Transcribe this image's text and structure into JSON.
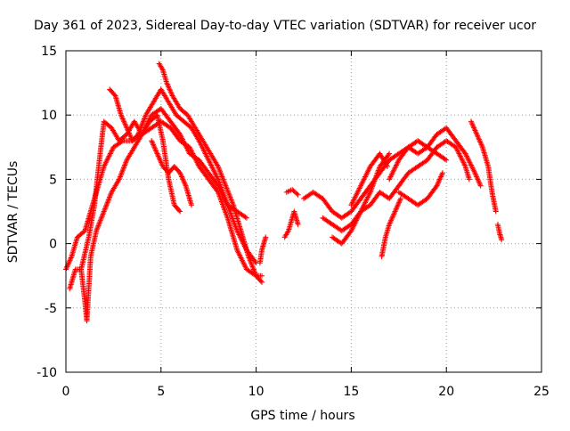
{
  "chart_data": {
    "type": "scatter",
    "title": "Day 361 of 2023, Sidereal Day-to-day VTEC variation (SDTVAR) for receiver ucor",
    "xlabel": "GPS time / hours",
    "ylabel": "SDTVAR / TECUs",
    "xlim": [
      0,
      25
    ],
    "ylim": [
      -10,
      15
    ],
    "xticks": [
      0,
      5,
      10,
      15,
      20,
      25
    ],
    "xtick_labels": [
      "0",
      "5",
      "10",
      "15",
      "20",
      "25"
    ],
    "yticks": [
      -10,
      -5,
      0,
      5,
      10,
      15
    ],
    "ytick_labels": [
      "-10",
      "-5",
      "0",
      "5",
      "10",
      "15"
    ],
    "grid": true,
    "marker": "+",
    "series": [
      {
        "name": "track-1",
        "color": "#ff0000",
        "x": [
          0.0,
          0.3,
          0.6,
          1.0,
          1.4,
          1.8,
          2.0,
          2.5,
          3.0,
          3.5,
          4.0,
          4.5,
          5.0,
          5.5,
          6.0,
          6.5,
          7.0,
          7.5,
          8.0,
          8.5,
          9.0,
          9.5,
          10.0,
          10.3
        ],
        "y": [
          -2.0,
          -1.0,
          0.5,
          1.0,
          3.0,
          5.0,
          6.0,
          7.5,
          8.0,
          8.0,
          8.5,
          9.0,
          9.5,
          9.0,
          8.0,
          7.5,
          6.0,
          5.0,
          4.0,
          2.0,
          -0.5,
          -2.0,
          -2.5,
          -2.5
        ]
      },
      {
        "name": "track-2",
        "color": "#ff0000",
        "x": [
          0.8,
          1.2,
          1.5,
          1.8,
          2.0,
          2.4,
          2.8,
          3.2,
          3.6,
          4.0,
          4.5,
          5.0,
          5.5,
          6.0,
          6.5,
          7.0,
          7.5,
          8.0,
          8.5,
          9.0,
          9.5
        ],
        "y": [
          -2.0,
          0.5,
          3.0,
          7.0,
          9.5,
          9.0,
          8.0,
          8.5,
          9.5,
          8.5,
          10.0,
          10.5,
          9.5,
          8.5,
          7.0,
          6.5,
          5.5,
          4.5,
          3.0,
          2.5,
          2.0
        ]
      },
      {
        "name": "track-3",
        "color": "#ff0000",
        "x": [
          2.3,
          2.6,
          2.9,
          3.2,
          3.5,
          3.8,
          4.2,
          4.6,
          5.0,
          5.4,
          5.8,
          6.2,
          6.6,
          7.0,
          7.5,
          8.0,
          8.5,
          9.0,
          9.5,
          10.0
        ],
        "y": [
          12.0,
          11.5,
          10.0,
          9.0,
          8.0,
          8.5,
          10.0,
          11.0,
          12.0,
          11.0,
          10.0,
          9.5,
          9.0,
          8.0,
          6.5,
          5.0,
          3.0,
          1.0,
          -0.5,
          -1.5
        ]
      },
      {
        "name": "track-4",
        "color": "#ff0000",
        "x": [
          4.9,
          5.1,
          5.3,
          5.6,
          6.0,
          6.4,
          6.8,
          7.2,
          7.6,
          8.0,
          8.4,
          8.8,
          9.2,
          9.6,
          10.0,
          10.3
        ],
        "y": [
          14.0,
          13.5,
          12.5,
          11.5,
          10.5,
          10.0,
          9.0,
          8.0,
          7.0,
          6.0,
          4.5,
          3.0,
          1.0,
          -1.0,
          -2.5,
          -3.0
        ]
      },
      {
        "name": "track-5",
        "color": "#ff0000",
        "x": [
          0.2,
          0.5,
          0.8,
          1.0,
          1.1,
          1.3,
          1.6,
          2.0,
          2.4,
          2.8,
          3.2,
          3.6,
          4.0,
          4.4,
          4.8,
          5.1,
          5.4,
          5.7,
          6.0
        ],
        "y": [
          -3.5,
          -2.0,
          -2.0,
          -4.5,
          -6.0,
          -1.0,
          1.0,
          2.5,
          4.0,
          5.0,
          6.5,
          7.5,
          8.5,
          9.5,
          10.0,
          8.0,
          5.0,
          3.0,
          2.5
        ]
      },
      {
        "name": "track-6",
        "color": "#ff0000",
        "x": [
          4.5,
          4.8,
          5.1,
          5.4,
          5.7,
          6.0,
          6.3,
          6.6
        ],
        "y": [
          8.0,
          7.0,
          6.0,
          5.5,
          6.0,
          5.5,
          4.5,
          3.0
        ]
      },
      {
        "name": "track-7",
        "color": "#ff0000",
        "x": [
          10.2,
          10.3,
          10.4,
          10.5
        ],
        "y": [
          -1.5,
          -0.5,
          0.0,
          0.5
        ]
      },
      {
        "name": "track-8",
        "color": "#ff0000",
        "x": [
          11.5,
          11.7,
          11.9,
          12.0,
          12.1,
          12.2
        ],
        "y": [
          0.5,
          1.0,
          2.0,
          2.5,
          2.0,
          1.5
        ]
      },
      {
        "name": "track-9",
        "color": "#ff0000",
        "x": [
          11.6,
          11.9,
          12.2
        ],
        "y": [
          4.0,
          4.2,
          3.8
        ]
      },
      {
        "name": "track-10",
        "color": "#ff0000",
        "x": [
          12.5,
          13.0,
          13.5,
          14.0,
          14.5,
          15.0,
          15.5,
          16.0,
          16.5,
          17.0,
          17.5,
          18.0,
          18.5,
          19.0,
          19.5,
          20.0,
          20.5,
          21.0,
          21.5,
          21.8
        ],
        "y": [
          3.5,
          4.0,
          3.5,
          2.5,
          2.0,
          2.5,
          3.5,
          4.5,
          5.5,
          6.5,
          7.0,
          7.5,
          7.0,
          7.5,
          8.5,
          9.0,
          8.0,
          7.0,
          5.5,
          4.5
        ]
      },
      {
        "name": "track-11",
        "color": "#ff0000",
        "x": [
          13.5,
          14.0,
          14.5,
          15.0,
          15.5,
          16.0,
          16.5,
          17.0,
          17.5,
          18.0,
          18.5,
          19.0,
          19.5,
          20.0,
          20.5,
          21.0,
          21.2
        ],
        "y": [
          2.0,
          1.5,
          1.0,
          1.5,
          2.5,
          3.0,
          4.0,
          3.5,
          4.5,
          5.5,
          6.0,
          6.5,
          7.5,
          8.0,
          7.5,
          6.0,
          5.0
        ]
      },
      {
        "name": "track-12",
        "color": "#ff0000",
        "x": [
          14.0,
          14.5,
          15.0,
          15.5,
          16.0,
          16.5,
          17.0
        ],
        "y": [
          0.5,
          0.0,
          1.0,
          2.5,
          4.0,
          6.0,
          7.0
        ]
      },
      {
        "name": "track-13",
        "color": "#ff0000",
        "x": [
          15.0,
          15.5,
          16.0,
          16.5,
          16.9
        ],
        "y": [
          3.0,
          4.5,
          6.0,
          7.0,
          6.0
        ]
      },
      {
        "name": "track-14",
        "color": "#ff0000",
        "x": [
          16.6,
          16.8,
          17.0,
          17.3,
          17.6
        ],
        "y": [
          -1.0,
          0.5,
          1.5,
          2.5,
          3.5
        ]
      },
      {
        "name": "track-15",
        "color": "#ff0000",
        "x": [
          17.0,
          17.5,
          18.0,
          18.5,
          19.0,
          19.5,
          20.0
        ],
        "y": [
          5.0,
          6.5,
          7.5,
          8.0,
          7.5,
          7.0,
          6.5
        ]
      },
      {
        "name": "track-16",
        "color": "#ff0000",
        "x": [
          17.5,
          18.0,
          18.5,
          19.0,
          19.5,
          19.8
        ],
        "y": [
          4.0,
          3.5,
          3.0,
          3.5,
          4.5,
          5.5
        ]
      },
      {
        "name": "track-17",
        "color": "#ff0000",
        "x": [
          21.3,
          21.6,
          21.9,
          22.2,
          22.4,
          22.6
        ],
        "y": [
          9.5,
          8.5,
          7.5,
          6.0,
          4.0,
          2.5
        ]
      },
      {
        "name": "track-18",
        "color": "#ff0000",
        "x": [
          22.7,
          22.8,
          22.9
        ],
        "y": [
          1.5,
          0.8,
          0.3
        ]
      }
    ]
  }
}
